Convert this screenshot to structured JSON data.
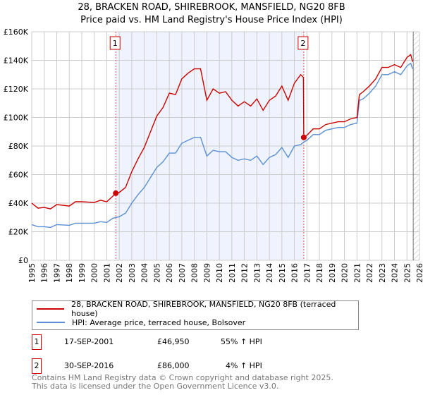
{
  "title_line1": "28, BRACKEN ROAD, SHIREBROOK, MANSFIELD, NG20 8FB",
  "title_line2": "Price paid vs. HM Land Registry's House Price Index (HPI)",
  "chart_data": {
    "type": "line",
    "xlim": [
      1995,
      2026
    ],
    "ylim": [
      0,
      160000
    ],
    "x_ticks": [
      "1995",
      "1996",
      "1997",
      "1998",
      "1999",
      "2000",
      "2001",
      "2002",
      "2003",
      "2004",
      "2005",
      "2006",
      "2007",
      "2008",
      "2009",
      "2010",
      "2011",
      "2012",
      "2013",
      "2014",
      "2015",
      "2016",
      "2017",
      "2018",
      "2019",
      "2020",
      "2021",
      "2022",
      "2023",
      "2024",
      "2025",
      "2026"
    ],
    "y_ticks": [
      {
        "v": 0,
        "label": "£0"
      },
      {
        "v": 20000,
        "label": "£20K"
      },
      {
        "v": 40000,
        "label": "£40K"
      },
      {
        "v": 60000,
        "label": "£60K"
      },
      {
        "v": 80000,
        "label": "£80K"
      },
      {
        "v": 100000,
        "label": "£100K"
      },
      {
        "v": 120000,
        "label": "£120K"
      },
      {
        "v": 140000,
        "label": "£140K"
      },
      {
        "v": 160000,
        "label": "£160K"
      }
    ],
    "grid": true,
    "shaded_range": [
      2001.72,
      2016.75
    ],
    "hatched_from": 2025.5,
    "series": [
      {
        "name": "28, BRACKEN ROAD, SHIREBROOK, MANSFIELD, NG20 8FB (terraced house)",
        "color": "#cc0000",
        "x": [
          1995,
          1995.5,
          1996,
          1996.5,
          1997,
          1998,
          1998.5,
          1999,
          2000,
          2000.5,
          2001,
          2001.5,
          2001.72,
          2002,
          2002.5,
          2003,
          2003.5,
          2004,
          2004.5,
          2005,
          2005.5,
          2006,
          2006.5,
          2007,
          2007.5,
          2008,
          2008.5,
          2009,
          2009.5,
          2010,
          2010.5,
          2011,
          2011.5,
          2012,
          2012.5,
          2013,
          2013.5,
          2014,
          2014.5,
          2015,
          2015.5,
          2016,
          2016.5,
          2016.72,
          2016.75,
          2017,
          2017.5,
          2018,
          2018.5,
          2019,
          2019.5,
          2020,
          2020.5,
          2021,
          2021.2,
          2021.5,
          2022,
          2022.5,
          2023,
          2023.5,
          2024,
          2024.5,
          2025,
          2025.3,
          2025.45
        ],
        "y": [
          40000,
          36500,
          37000,
          36000,
          39000,
          38000,
          41000,
          41000,
          40500,
          42000,
          41000,
          45000,
          46950,
          47500,
          51000,
          62000,
          71000,
          79000,
          90000,
          101000,
          107000,
          117000,
          116000,
          127000,
          131000,
          134000,
          134000,
          112000,
          120000,
          117000,
          118000,
          112000,
          108000,
          111000,
          108000,
          113000,
          105000,
          112000,
          115000,
          122000,
          112000,
          124000,
          130000,
          128000,
          86000,
          87500,
          92000,
          92000,
          95000,
          96000,
          97000,
          97000,
          99000,
          100000,
          116000,
          118000,
          122000,
          127000,
          135000,
          135000,
          137000,
          135000,
          142000,
          144000,
          139000
        ]
      },
      {
        "name": "HPI: Average price, terraced house, Bolsover",
        "color": "#5b8fd4",
        "x": [
          1995,
          1995.5,
          1996,
          1996.5,
          1997,
          1998,
          1998.5,
          1999,
          2000,
          2000.5,
          2001,
          2001.5,
          2002,
          2002.5,
          2003,
          2003.5,
          2004,
          2004.5,
          2005,
          2005.5,
          2006,
          2006.5,
          2007,
          2007.5,
          2008,
          2008.5,
          2009,
          2009.5,
          2010,
          2010.5,
          2011,
          2011.5,
          2012,
          2012.5,
          2013,
          2013.5,
          2014,
          2014.5,
          2015,
          2015.5,
          2016,
          2016.5,
          2016.75,
          2017,
          2017.5,
          2018,
          2018.5,
          2019,
          2019.5,
          2020,
          2020.5,
          2021,
          2021.2,
          2021.5,
          2022,
          2022.5,
          2023,
          2023.5,
          2024,
          2024.5,
          2025,
          2025.3,
          2025.45
        ],
        "y": [
          25000,
          23500,
          23500,
          23000,
          25000,
          24500,
          26000,
          26000,
          26000,
          27000,
          26500,
          29500,
          30500,
          33000,
          40000,
          46000,
          51000,
          58000,
          65000,
          69000,
          75000,
          75000,
          82000,
          84000,
          86000,
          86000,
          73000,
          77000,
          76000,
          76000,
          72000,
          70000,
          71000,
          70000,
          73000,
          67000,
          72000,
          74000,
          79000,
          72000,
          80000,
          81000,
          82700,
          84000,
          88000,
          88000,
          91000,
          92000,
          93000,
          93000,
          95000,
          96000,
          112000,
          113000,
          117000,
          122000,
          130000,
          130000,
          132000,
          130000,
          136000,
          138000,
          134000
        ]
      }
    ],
    "annotations": [
      {
        "label": "1",
        "x": 2001.72,
        "y": 46950
      },
      {
        "label": "2",
        "x": 2016.75,
        "y": 86000
      }
    ]
  },
  "legend": {
    "red_label": "28, BRACKEN ROAD, SHIREBROOK, MANSFIELD, NG20 8FB (terraced house)",
    "blue_label": "HPI: Average price, terraced house, Bolsover"
  },
  "sales": [
    {
      "num": "1",
      "date": "17-SEP-2001",
      "price": "£46,950",
      "hpi": "55% ↑ HPI"
    },
    {
      "num": "2",
      "date": "30-SEP-2016",
      "price": "£86,000",
      "hpi": "4% ↑ HPI"
    }
  ],
  "footer_line1": "Contains HM Land Registry data © Crown copyright and database right 2025.",
  "footer_line2": "This data is licensed under the Open Government Licence v3.0."
}
